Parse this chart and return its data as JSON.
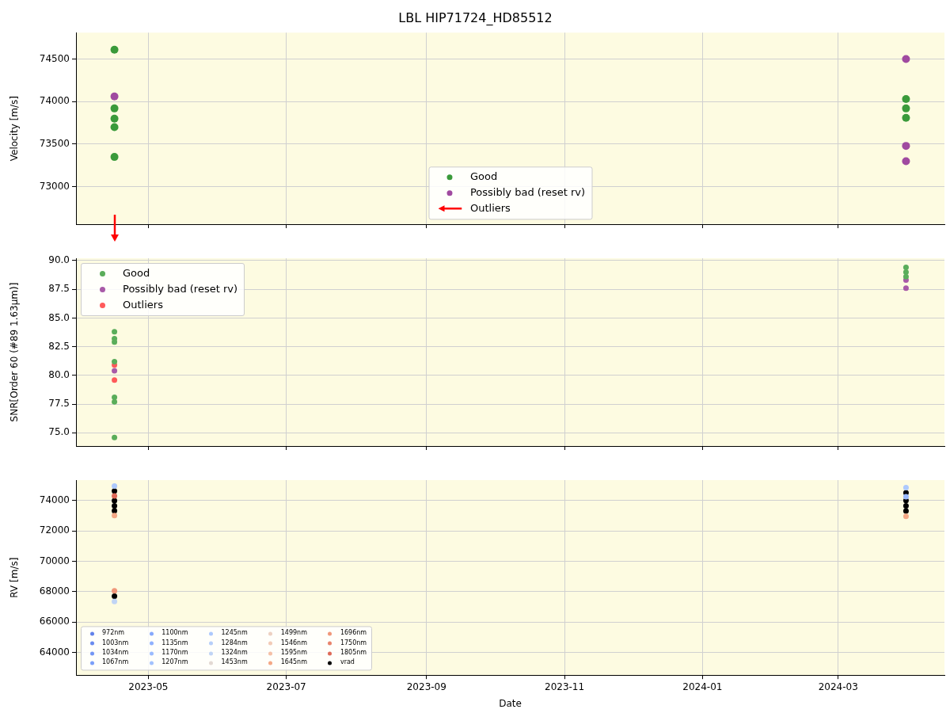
{
  "chart_data": [
    {
      "type": "scatter",
      "title": "LBL HIP71724_HD85512",
      "ylabel": "Velocity [m/s]",
      "xlim": [
        "2023-03-30",
        "2024-04-17"
      ],
      "xticks": [
        "2023-05",
        "2023-07",
        "2023-09",
        "2023-11",
        "2024-01",
        "2024-03"
      ],
      "ylim": [
        72560,
        74810
      ],
      "yticks": [
        73000,
        73500,
        74000,
        74500
      ],
      "grid": true,
      "legend": "bottom",
      "marker": "circle",
      "tick_labels": "y",
      "series": [
        {
          "name": "Good",
          "color": "#3a9a3a",
          "x": [
            "2023-04-16",
            "2023-04-16",
            "2023-04-16",
            "2023-04-16",
            "2023-04-16",
            "2024-03-31",
            "2024-03-31",
            "2024-03-31"
          ],
          "values": [
            74610,
            73920,
            73800,
            73700,
            73350,
            74030,
            73920,
            73810
          ]
        },
        {
          "name": "Possibly bad (reset rv)",
          "color": "#a04aa0",
          "x": [
            "2023-04-16",
            "2024-03-31",
            "2024-03-31",
            "2024-03-31"
          ],
          "values": [
            74060,
            74500,
            73480,
            73300
          ]
        },
        {
          "name": "Outliers",
          "color": "#ff0000"
        }
      ]
    },
    {
      "type": "scatter",
      "ylabel": "SNR[Order 60 (#89 1.63μm)]",
      "xlim": [
        "2023-03-30",
        "2024-04-17"
      ],
      "xticks": [
        "2023-05",
        "2023-07",
        "2023-09",
        "2023-11",
        "2024-01",
        "2024-03"
      ],
      "ylim": [
        73.85,
        90.2
      ],
      "yticks": [
        {
          "value": 75,
          "label": "75.0"
        },
        {
          "value": 77.5,
          "label": "77.5"
        },
        {
          "value": 80,
          "label": "80.0"
        },
        {
          "value": 82.5,
          "label": "82.5"
        },
        {
          "value": 85,
          "label": "85.0"
        },
        {
          "value": 87.5,
          "label": "87.5"
        },
        {
          "value": 90,
          "label": "90.0"
        }
      ],
      "grid": true,
      "legend": "top left",
      "marker": "circle",
      "tick_labels": "y",
      "series": [
        {
          "name": "Good",
          "color": "#5aad5a",
          "x": [
            "2023-04-16",
            "2023-04-16",
            "2023-04-16",
            "2023-04-16",
            "2023-04-16",
            "2023-04-16",
            "2023-04-16",
            "2024-03-31",
            "2024-03-31",
            "2024-03-31"
          ],
          "values": [
            83.8,
            83.2,
            82.9,
            81.2,
            78.1,
            77.7,
            74.6,
            89.4,
            89.0,
            88.6
          ]
        },
        {
          "name": "Possibly bad (reset rv)",
          "color": "#a85aa8",
          "x": [
            "2023-04-16",
            "2024-03-31",
            "2024-03-31"
          ],
          "values": [
            80.4,
            88.3,
            87.6
          ]
        },
        {
          "name": "Outliers",
          "color": "#ff5a5a",
          "x": [
            "2023-04-16",
            "2023-04-16"
          ],
          "values": [
            80.9,
            79.6
          ]
        }
      ]
    },
    {
      "type": "scatter",
      "xlabel": "Date",
      "ylabel": "RV [m/s]",
      "xlim": [
        "2023-03-30",
        "2024-04-17"
      ],
      "xticks": [
        "2023-05",
        "2023-07",
        "2023-09",
        "2023-11",
        "2024-01",
        "2024-03"
      ],
      "ylim": [
        62500,
        75340
      ],
      "yticks": [
        64000,
        66000,
        68000,
        70000,
        72000,
        74000
      ],
      "grid": true,
      "legend": "bottom left",
      "marker": "circle",
      "series": [
        {
          "name": "972nm",
          "color": "#6282ea"
        },
        {
          "name": "1003nm",
          "color": "#6a8bef"
        },
        {
          "name": "1034nm",
          "color": "#7396f5"
        },
        {
          "name": "1067nm",
          "color": "#7b9ff9"
        },
        {
          "name": "1100nm",
          "color": "#86a9fc"
        },
        {
          "name": "1135nm",
          "color": "#8fb1fe"
        },
        {
          "name": "1170nm",
          "color": "#9abbff",
          "x": [
            "2024-03-31"
          ],
          "values": [
            74250
          ]
        },
        {
          "name": "1207nm",
          "color": "#a3c2fe"
        },
        {
          "name": "1245nm",
          "color": "#adc9fd",
          "x": [
            "2023-04-16",
            "2024-03-31"
          ],
          "values": [
            74950,
            74850
          ]
        },
        {
          "name": "1284nm",
          "color": "#b7cff9"
        },
        {
          "name": "1324nm",
          "color": "#c0d4f5",
          "x": [
            "2023-04-16"
          ],
          "values": [
            67350
          ]
        },
        {
          "name": "1453nm",
          "color": "#e3d9d3"
        },
        {
          "name": "1499nm",
          "color": "#edd1c2"
        },
        {
          "name": "1546nm",
          "color": "#f2cbb7"
        },
        {
          "name": "1595nm",
          "color": "#f5c0a7"
        },
        {
          "name": "1645nm",
          "color": "#f4a886",
          "x": [
            "2023-04-16",
            "2024-03-31"
          ],
          "values": [
            73000,
            72950
          ]
        },
        {
          "name": "1696nm",
          "color": "#f0977a",
          "x": [
            "2023-04-16"
          ],
          "values": [
            68050
          ]
        },
        {
          "name": "1750nm",
          "color": "#e8846c"
        },
        {
          "name": "1805nm",
          "color": "#de6a58",
          "x": [
            "2023-04-16"
          ],
          "values": [
            74300
          ]
        },
        {
          "name": "vrad",
          "color": "#000000",
          "x": [
            "2023-04-16",
            "2023-04-16",
            "2023-04-16",
            "2023-04-16",
            "2023-04-16",
            "2024-03-31",
            "2024-03-31",
            "2024-03-31",
            "2024-03-31"
          ],
          "values": [
            74620,
            73980,
            73650,
            73320,
            67700,
            74500,
            74000,
            73650,
            73300
          ]
        }
      ]
    }
  ]
}
